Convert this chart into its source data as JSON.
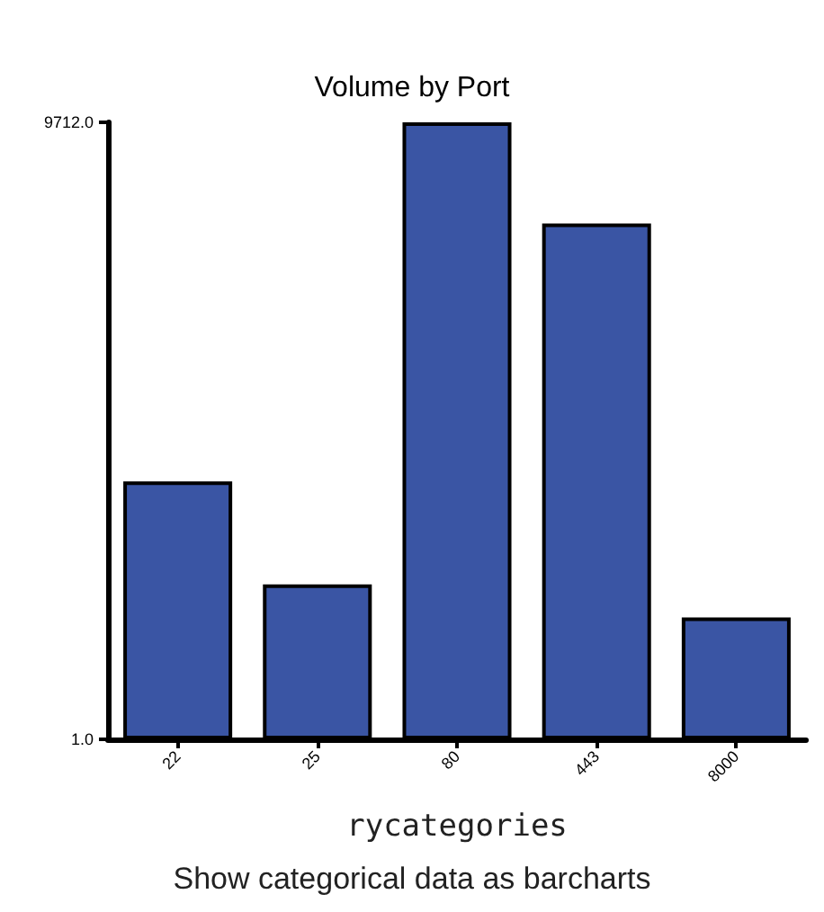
{
  "chart_data": {
    "type": "bar",
    "title": "Volume by Port",
    "xlabel": "rycategories",
    "annotations": [
      "Show categorical data as barcharts"
    ],
    "categories": [
      "22",
      "25",
      "80",
      "443",
      "8000"
    ],
    "values": [
      4060,
      2440,
      9712,
      8120,
      1920
    ],
    "color": "#3a55a4",
    "ylim": [
      1,
      9712
    ],
    "yticks": [
      {
        "value": 1,
        "label": "1.0"
      },
      {
        "value": 9712,
        "label": "9712.0"
      }
    ],
    "grid": false
  }
}
